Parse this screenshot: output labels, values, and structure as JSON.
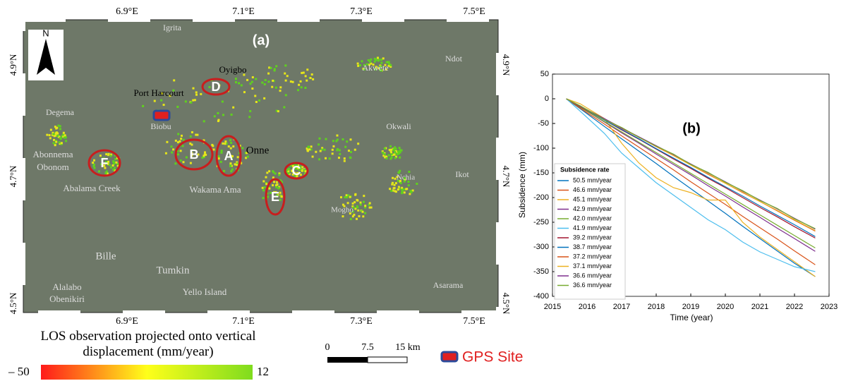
{
  "map": {
    "panel_label": "(a)",
    "north": "N",
    "lon_labels": [
      "6.9°E",
      "7.1°E",
      "7.3°E",
      "7.5°E"
    ],
    "lat_labels": [
      "4.9°N",
      "4.7°N",
      "4.5°N"
    ],
    "places": [
      "Igrita",
      "Oyigbo",
      "Akwete",
      "Ndot",
      "Port Harcourt",
      "Degema",
      "Biobu",
      "Okwali",
      "Abonnema",
      "Obonom",
      "Onne",
      "Abalama Creek",
      "Wakama Ama",
      "Ikot",
      "Nchia",
      "Mogho",
      "Bille",
      "Tumkin",
      "Yello Island",
      "Alalabo",
      "Obenikiri",
      "Asarama"
    ],
    "sites": [
      "D",
      "B",
      "A",
      "C",
      "E",
      "F"
    ],
    "legend_title": "LOS observation projected onto vertical displacement (mm/year)",
    "colorbar_labels": [
      "– 50",
      "12"
    ],
    "scale_labels": [
      "0",
      "7.5",
      "15 km"
    ],
    "gps_label": "GPS Site"
  },
  "chart_data": {
    "type": "line",
    "title": "(b)",
    "x_label": "Time (year)",
    "y_label": "Subsidence (mm)",
    "legend_title": "Subsidence rate",
    "x": [
      2015.4,
      2015.8,
      2016.5,
      2017,
      2017.5,
      2018,
      2018.5,
      2019,
      2019.5,
      2020,
      2020.5,
      2021,
      2021.5,
      2022,
      2022.6
    ],
    "xlim": [
      2015,
      2023
    ],
    "xticks": [
      2015,
      2016,
      2017,
      2018,
      2019,
      2020,
      2021,
      2022,
      2023
    ],
    "ylim": [
      -400,
      50
    ],
    "yticks": [
      50,
      0,
      -50,
      -100,
      -150,
      -200,
      -250,
      -300,
      -350,
      -400
    ],
    "series": [
      {
        "name": "50.5 mm/year",
        "color": "#0072BD",
        "values": [
          0,
          -20,
          -56,
          -81,
          -106,
          -131,
          -157,
          -182,
          -207,
          -232,
          -258,
          -283,
          -308,
          -333,
          -360
        ]
      },
      {
        "name": "46.6 mm/year",
        "color": "#D95319",
        "values": [
          0,
          -19,
          -51,
          -75,
          -98,
          -121,
          -144,
          -168,
          -191,
          -214,
          -238,
          -261,
          -284,
          -308,
          -336
        ]
      },
      {
        "name": "45.1 mm/year",
        "color": "#EDB120",
        "values": [
          0,
          -10,
          -40,
          -90,
          -130,
          -160,
          -180,
          -190,
          -205,
          -205,
          -250,
          -280,
          -305,
          -330,
          -360
        ]
      },
      {
        "name": "42.9 mm/year",
        "color": "#7E2F8E",
        "values": [
          0,
          -17,
          -47,
          -69,
          -90,
          -112,
          -133,
          -154,
          -176,
          -197,
          -219,
          -240,
          -262,
          -283,
          -309
        ]
      },
      {
        "name": "42.0 mm/year",
        "color": "#77AC30",
        "values": [
          0,
          -17,
          -46,
          -67,
          -88,
          -109,
          -130,
          -151,
          -172,
          -193,
          -214,
          -235,
          -256,
          -277,
          -302
        ]
      },
      {
        "name": "41.9 mm/year",
        "color": "#4DBEEE",
        "values": [
          0,
          -25,
          -70,
          -110,
          -140,
          -170,
          -195,
          -220,
          -245,
          -265,
          -290,
          -310,
          -325,
          -340,
          -350
        ]
      },
      {
        "name": "39.2 mm/year",
        "color": "#A2142F",
        "values": [
          0,
          -16,
          -43,
          -63,
          -82,
          -102,
          -122,
          -141,
          -161,
          -180,
          -200,
          -220,
          -239,
          -259,
          -282
        ]
      },
      {
        "name": "38.7 mm/year",
        "color": "#0072BD",
        "values": [
          0,
          -15,
          -43,
          -62,
          -81,
          -101,
          -120,
          -139,
          -159,
          -178,
          -197,
          -217,
          -236,
          -255,
          -279
        ]
      },
      {
        "name": "37.2 mm/year",
        "color": "#D95319",
        "values": [
          0,
          -15,
          -41,
          -60,
          -78,
          -97,
          -115,
          -134,
          -153,
          -171,
          -190,
          -208,
          -227,
          -246,
          -268
        ]
      },
      {
        "name": "37.1 mm/year",
        "color": "#EDB120",
        "values": [
          0,
          -15,
          -41,
          -59,
          -78,
          -96,
          -115,
          -134,
          -152,
          -171,
          -189,
          -208,
          -226,
          -245,
          -267
        ]
      },
      {
        "name": "36.6 mm/year",
        "color": "#7E2F8E",
        "values": [
          0,
          -15,
          -40,
          -59,
          -77,
          -95,
          -113,
          -132,
          -150,
          -168,
          -187,
          -205,
          -223,
          -242,
          -264
        ]
      },
      {
        "name": "36.6 mm/year",
        "color": "#77AC30",
        "values": [
          0,
          -14,
          -42,
          -58,
          -78,
          -96,
          -112,
          -133,
          -149,
          -169,
          -186,
          -206,
          -222,
          -243,
          -263
        ]
      }
    ]
  }
}
